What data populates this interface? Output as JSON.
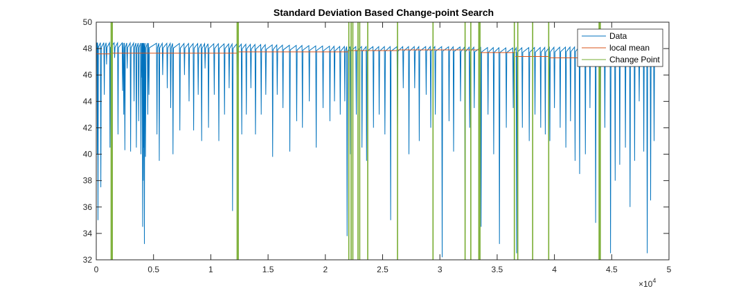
{
  "chart_data": {
    "type": "line",
    "title": "Standard Deviation Based Change-point Search",
    "xlabel": "",
    "ylabel": "",
    "xlim": [
      0,
      50000
    ],
    "ylim": [
      32,
      50
    ],
    "x_ticks": [
      0,
      5000,
      10000,
      15000,
      20000,
      25000,
      30000,
      35000,
      40000,
      45000,
      50000
    ],
    "x_tick_labels": [
      "0",
      "0.5",
      "1",
      "1.5",
      "2",
      "2.5",
      "3",
      "3.5",
      "4",
      "4.5",
      "5"
    ],
    "x_exponent_label": "×10",
    "x_exponent_power": "4",
    "y_ticks": [
      32,
      34,
      36,
      38,
      40,
      42,
      44,
      46,
      48,
      50
    ],
    "y_tick_labels": [
      "32",
      "34",
      "36",
      "38",
      "40",
      "42",
      "44",
      "46",
      "48",
      "50"
    ],
    "grid": false,
    "legend_placement": "top-right",
    "colors": {
      "data": "#0072BD",
      "local_mean": "#D95319",
      "change_point": "#77AC30"
    },
    "series": [
      {
        "name": "Data",
        "baseline": [
          [
            0,
            48.2
          ],
          [
            12000,
            48.1
          ],
          [
            22000,
            47.9
          ],
          [
            30000,
            47.9
          ],
          [
            36000,
            47.8
          ],
          [
            44000,
            47.9
          ],
          [
            48800,
            48.0
          ]
        ],
        "dips": [
          [
            100,
            40.0
          ],
          [
            150,
            35.0
          ],
          [
            400,
            37.5
          ],
          [
            700,
            44.5
          ],
          [
            900,
            46.8
          ],
          [
            1200,
            40.5
          ],
          [
            1600,
            47.3
          ],
          [
            1900,
            41.5
          ],
          [
            2300,
            44.8
          ],
          [
            2400,
            43.0
          ],
          [
            2500,
            40.3
          ],
          [
            2700,
            46.5
          ],
          [
            3000,
            40.2
          ],
          [
            3300,
            44.0
          ],
          [
            3500,
            40.5
          ],
          [
            3700,
            42.5
          ],
          [
            3900,
            40.0
          ],
          [
            4000,
            45.8
          ],
          [
            4050,
            34.5
          ],
          [
            4100,
            38.0
          ],
          [
            4150,
            40.5
          ],
          [
            4200,
            33.2
          ],
          [
            4300,
            39.8
          ],
          [
            4500,
            43.0
          ],
          [
            4600,
            44.5
          ],
          [
            5300,
            41.5
          ],
          [
            5500,
            39.5
          ],
          [
            5800,
            46.0
          ],
          [
            6200,
            45.0
          ],
          [
            6500,
            43.5
          ],
          [
            6700,
            40.0
          ],
          [
            7300,
            41.8
          ],
          [
            7700,
            46.0
          ],
          [
            8100,
            44.0
          ],
          [
            8500,
            41.8
          ],
          [
            8900,
            44.5
          ],
          [
            9200,
            41.0
          ],
          [
            9500,
            46.5
          ],
          [
            9800,
            42.0
          ],
          [
            10300,
            44.5
          ],
          [
            10700,
            41.0
          ],
          [
            11200,
            43.0
          ],
          [
            11600,
            45.0
          ],
          [
            11900,
            35.7
          ],
          [
            12300,
            46.0
          ],
          [
            12700,
            41.5
          ],
          [
            13100,
            43.0
          ],
          [
            13500,
            45.0
          ],
          [
            13900,
            41.5
          ],
          [
            14400,
            43.0
          ],
          [
            14800,
            44.5
          ],
          [
            15400,
            39.8
          ],
          [
            15800,
            44.5
          ],
          [
            16300,
            43.5
          ],
          [
            16900,
            40.2
          ],
          [
            17500,
            42.5
          ],
          [
            18000,
            42.0
          ],
          [
            18600,
            44.0
          ],
          [
            19200,
            40.5
          ],
          [
            19800,
            43.5
          ],
          [
            20400,
            42.5
          ],
          [
            20800,
            44.0
          ],
          [
            21300,
            43.0
          ],
          [
            21700,
            44.0
          ],
          [
            21900,
            33.8
          ],
          [
            22200,
            40.0
          ],
          [
            22700,
            43.0
          ],
          [
            23200,
            40.5
          ],
          [
            23600,
            39.5
          ],
          [
            24200,
            42.0
          ],
          [
            24700,
            43.0
          ],
          [
            25200,
            41.5
          ],
          [
            25700,
            35.0
          ],
          [
            26300,
            42.0
          ],
          [
            26800,
            45.0
          ],
          [
            27300,
            40.0
          ],
          [
            27800,
            45.0
          ],
          [
            28200,
            41.0
          ],
          [
            28800,
            44.5
          ],
          [
            29200,
            42.0
          ],
          [
            29600,
            43.0
          ],
          [
            30200,
            32.2
          ],
          [
            30800,
            42.5
          ],
          [
            31200,
            40.2
          ],
          [
            31800,
            44.0
          ],
          [
            32200,
            34.0
          ],
          [
            32600,
            42.0
          ],
          [
            33000,
            43.5
          ],
          [
            33600,
            34.5
          ],
          [
            34200,
            43.0
          ],
          [
            34700,
            40.0
          ],
          [
            35200,
            33.2
          ],
          [
            35800,
            42.0
          ],
          [
            36400,
            43.5
          ],
          [
            36700,
            32.5
          ],
          [
            37200,
            42.0
          ],
          [
            37800,
            41.0
          ],
          [
            38300,
            43.0
          ],
          [
            38800,
            42.0
          ],
          [
            39200,
            41.5
          ],
          [
            39600,
            41.0
          ],
          [
            40000,
            43.5
          ],
          [
            40500,
            42.0
          ],
          [
            41000,
            40.5
          ],
          [
            41400,
            42.5
          ],
          [
            41800,
            39.5
          ],
          [
            42200,
            38.5
          ],
          [
            42700,
            40.0
          ],
          [
            43100,
            43.5
          ],
          [
            43600,
            34.8
          ],
          [
            44000,
            38.5
          ],
          [
            44400,
            42.0
          ],
          [
            44900,
            32.5
          ],
          [
            45300,
            38.0
          ],
          [
            45700,
            39.2
          ],
          [
            46200,
            40.5
          ],
          [
            46600,
            36.0
          ],
          [
            47000,
            39.5
          ],
          [
            47400,
            44.0
          ],
          [
            47800,
            40.2
          ],
          [
            48100,
            32.5
          ],
          [
            48400,
            36.5
          ],
          [
            48700,
            41.0
          ]
        ]
      },
      {
        "name": "local mean",
        "segments": [
          [
            0,
            1300,
            47.6
          ],
          [
            1300,
            12400,
            47.65
          ],
          [
            12400,
            22000,
            47.75
          ],
          [
            22000,
            26300,
            47.85
          ],
          [
            26300,
            33500,
            47.9
          ],
          [
            33500,
            36600,
            47.7
          ],
          [
            36600,
            39500,
            47.4
          ],
          [
            39500,
            44000,
            47.3
          ],
          [
            44000,
            48800,
            47.5
          ]
        ]
      },
      {
        "name": "Change Point",
        "x": [
          1300,
          1400,
          12300,
          12400,
          22050,
          22250,
          22400,
          22850,
          23000,
          23700,
          26300,
          29400,
          32200,
          32700,
          33400,
          33500,
          36500,
          36800,
          38100,
          39500,
          43900,
          44000
        ]
      }
    ]
  }
}
